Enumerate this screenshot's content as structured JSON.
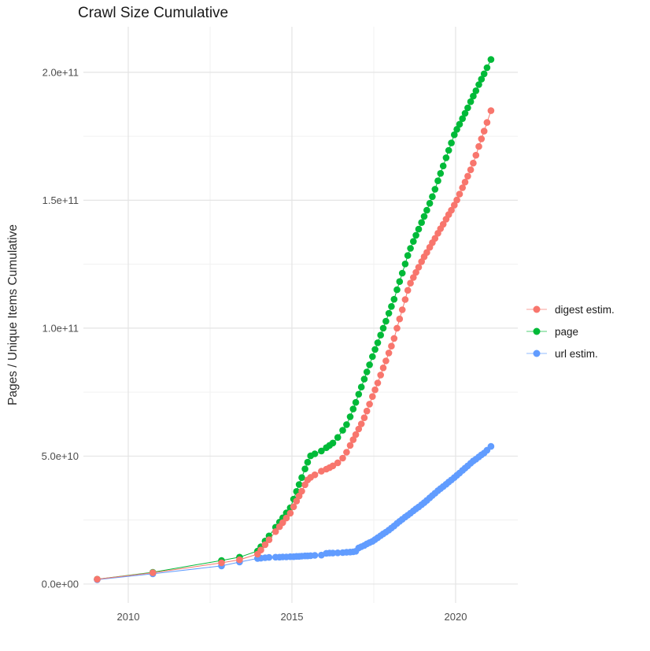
{
  "title": "Crawl Size Cumulative",
  "axes": {
    "y_title": "Pages / Unique Items Cumulative",
    "y_ticks": [
      {
        "label": "0.0e+00",
        "value": 0
      },
      {
        "label": "5.0e+10",
        "value": 50
      },
      {
        "label": "1.0e+11",
        "value": 100
      },
      {
        "label": "1.5e+11",
        "value": 150
      },
      {
        "label": "2.0e+11",
        "value": 200
      }
    ],
    "y_minor": [
      25,
      75,
      125,
      175
    ],
    "x_ticks": [
      {
        "label": "2010",
        "value": 2010
      },
      {
        "label": "2015",
        "value": 2015
      },
      {
        "label": "2020",
        "value": 2020
      }
    ],
    "x_minor": [
      2012.5,
      2017.5
    ]
  },
  "legend": {
    "items": [
      {
        "label": "digest estim.",
        "color": "#F8766D"
      },
      {
        "label": "page",
        "color": "#00BA38"
      },
      {
        "label": "url estim.",
        "color": "#619CFF"
      }
    ]
  },
  "colors": {
    "digest": "#F8766D",
    "page": "#00BA38",
    "url": "#619CFF",
    "grid_major": "#e4e4e4",
    "grid_minor": "#f1f1f1",
    "tick_text": "#4d4d4d"
  },
  "chart_data": {
    "type": "scatter",
    "title": "Crawl Size Cumulative",
    "xlabel": "",
    "ylabel": "Pages / Unique Items Cumulative",
    "value_unit": "pages (billions, 1e9)",
    "xlim": [
      2008.6,
      2021.9
    ],
    "ylim": [
      0,
      210
    ],
    "grid": true,
    "legend_position": "right",
    "x_years": [
      2009.05,
      2010.75,
      2012.85,
      2013.4,
      2013.95,
      2014.05,
      2014.18,
      2014.3,
      2014.5,
      2014.62,
      2014.72,
      2014.83,
      2014.95,
      2015.05,
      2015.14,
      2015.22,
      2015.3,
      2015.4,
      2015.48,
      2015.57,
      2015.7,
      2015.9,
      2016.05,
      2016.15,
      2016.25,
      2016.4,
      2016.55,
      2016.67,
      2016.78,
      2016.87,
      2016.95,
      2017.04,
      2017.12,
      2017.21,
      2017.29,
      2017.37,
      2017.46,
      2017.54,
      2017.62,
      2017.71,
      2017.79,
      2017.87,
      2017.96,
      2018.04,
      2018.12,
      2018.21,
      2018.29,
      2018.37,
      2018.46,
      2018.54,
      2018.62,
      2018.71,
      2018.79,
      2018.87,
      2018.96,
      2019.04,
      2019.12,
      2019.21,
      2019.29,
      2019.37,
      2019.46,
      2019.54,
      2019.62,
      2019.71,
      2019.79,
      2019.87,
      2019.96,
      2020.04,
      2020.12,
      2020.21,
      2020.29,
      2020.37,
      2020.46,
      2020.54,
      2020.62,
      2020.71,
      2020.79,
      2020.87,
      2020.96,
      2021.08
    ],
    "z_order": [
      "page",
      "url estim.",
      "digest estim."
    ],
    "series": [
      {
        "name": "page",
        "color": "#00BA38",
        "values": [
          1.9,
          4.6,
          9.2,
          10.5,
          12.9,
          14.6,
          16.8,
          18.8,
          22.2,
          24.2,
          25.9,
          27.8,
          29.8,
          33.2,
          36.2,
          38.9,
          41.6,
          45.0,
          47.6,
          50.1,
          50.9,
          52.0,
          53.3,
          54.2,
          55.1,
          57.3,
          60.1,
          62.3,
          65.4,
          68.4,
          71.0,
          74.2,
          77.0,
          80.1,
          82.9,
          85.7,
          88.9,
          91.7,
          94.3,
          97.3,
          100.0,
          102.7,
          105.8,
          108.5,
          111.3,
          115.0,
          118.2,
          121.5,
          125.1,
          128.4,
          131.2,
          133.9,
          136.3,
          138.7,
          141.3,
          143.7,
          146.1,
          148.8,
          151.4,
          154.3,
          157.6,
          160.5,
          163.4,
          166.6,
          169.5,
          172.4,
          175.6,
          177.7,
          179.7,
          181.9,
          184.0,
          186.1,
          188.5,
          190.7,
          192.8,
          195.2,
          197.3,
          199.4,
          201.8,
          205.0
        ]
      },
      {
        "name": "digest estim.",
        "color": "#F8766D",
        "values": [
          1.9,
          4.4,
          8.3,
          9.5,
          11.7,
          13.3,
          15.4,
          17.3,
          20.5,
          22.4,
          24.0,
          25.8,
          27.7,
          30.2,
          32.4,
          34.4,
          36.3,
          38.8,
          40.7,
          41.7,
          42.7,
          44.1,
          44.9,
          45.5,
          46.2,
          47.4,
          49.2,
          51.5,
          54.2,
          56.4,
          58.4,
          60.6,
          62.6,
          65.0,
          67.6,
          70.3,
          73.3,
          75.9,
          78.6,
          81.7,
          84.5,
          87.2,
          90.3,
          93.0,
          96.0,
          100.0,
          103.6,
          107.2,
          111.2,
          114.8,
          117.6,
          119.8,
          121.8,
          123.8,
          126.0,
          127.9,
          129.6,
          131.6,
          133.4,
          135.1,
          137.1,
          138.9,
          140.6,
          142.6,
          144.4,
          146.1,
          148.1,
          150.1,
          152.4,
          154.9,
          157.1,
          159.4,
          161.9,
          164.5,
          167.6,
          171.0,
          174.0,
          177.0,
          180.4,
          185.0
        ]
      },
      {
        "name": "url estim.",
        "color": "#619CFF",
        "values": [
          1.7,
          4.0,
          7.1,
          8.6,
          10.0,
          10.1,
          10.3,
          10.4,
          10.5,
          10.5,
          10.6,
          10.6,
          10.7,
          10.7,
          10.8,
          10.8,
          10.9,
          11.0,
          11.0,
          11.1,
          11.2,
          11.3,
          12.0,
          12.1,
          12.1,
          12.2,
          12.3,
          12.4,
          12.5,
          12.6,
          12.8,
          14.1,
          14.6,
          15.1,
          15.7,
          16.2,
          16.7,
          17.4,
          18.1,
          18.9,
          19.6,
          20.3,
          21.1,
          21.9,
          22.7,
          23.7,
          24.5,
          25.3,
          26.2,
          26.9,
          27.7,
          28.6,
          29.4,
          30.1,
          31.0,
          31.8,
          32.7,
          33.7,
          34.6,
          35.5,
          36.5,
          37.3,
          38.1,
          39.0,
          39.9,
          40.7,
          41.6,
          42.5,
          43.4,
          44.4,
          45.3,
          46.2,
          47.2,
          48.1,
          48.8,
          49.7,
          50.5,
          51.2,
          52.3,
          53.8
        ]
      }
    ]
  }
}
